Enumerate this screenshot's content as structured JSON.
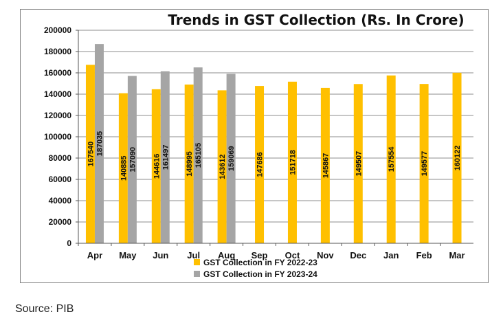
{
  "chart_data": {
    "type": "bar",
    "title": "Trends in GST Collection (Rs. In Crore)",
    "xlabel": "",
    "ylabel": "",
    "categories": [
      "Apr",
      "May",
      "Jun",
      "Jul",
      "Aug",
      "Sep",
      "Oct",
      "Nov",
      "Dec",
      "Jan",
      "Feb",
      "Mar"
    ],
    "series": [
      {
        "name": "GST Collection in FY 2022-23",
        "color": "#ffc000",
        "values": [
          167540,
          140885,
          144616,
          148995,
          143612,
          147686,
          151718,
          145867,
          149507,
          157554,
          149577,
          160122
        ]
      },
      {
        "name": "GST Collection in FY 2023-24",
        "color": "#a5a5a5",
        "values": [
          187035,
          157090,
          161497,
          165105,
          159069,
          null,
          null,
          null,
          null,
          null,
          null,
          null
        ]
      }
    ],
    "ylim": [
      0,
      200000
    ],
    "yticks": [
      0,
      20000,
      40000,
      60000,
      80000,
      100000,
      120000,
      140000,
      160000,
      180000,
      200000
    ],
    "grid": true,
    "legend": "bottom",
    "data_labels": "vertical-inside"
  },
  "source": "Source: PIB"
}
